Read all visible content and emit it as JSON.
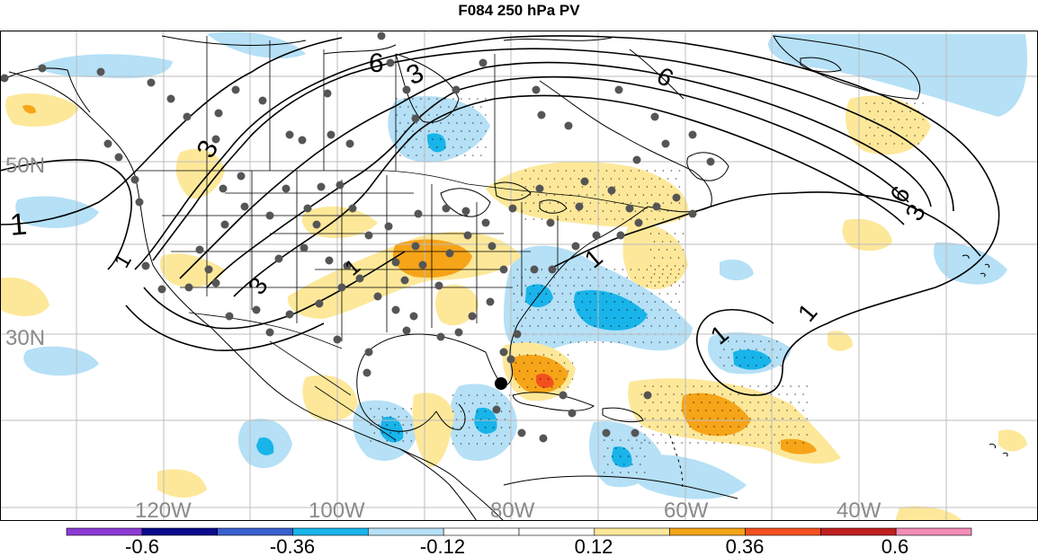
{
  "title": "F084 250 hPa PV",
  "map": {
    "lat_labels": [
      "50N",
      "30N"
    ],
    "lon_labels": [
      "120W",
      "100W",
      "80W",
      "60W",
      "40W"
    ],
    "contour_labels": [
      "1",
      "1",
      "1",
      "1",
      "1",
      "1",
      "3",
      "3",
      "3",
      "3",
      "6",
      "6",
      "6"
    ],
    "colors": {
      "ocean_background": "#ffffff",
      "coast": "#000000",
      "grid": "#bdbdbd",
      "station": "#555555",
      "label_gray": "#8a8a8a"
    }
  },
  "colorbar": {
    "tick_labels": [
      "-0.6",
      "-0.36",
      "-0.12",
      "0.12",
      "0.36",
      "0.6"
    ],
    "colors": [
      "#8c3bd6",
      "#0a0a8c",
      "#3a5fd0",
      "#18b4ea",
      "#b5e0f6",
      "#ffffff",
      "#ffffff",
      "#fde89a",
      "#f6a418",
      "#f2501e",
      "#c02020",
      "#f48cb8"
    ]
  }
}
